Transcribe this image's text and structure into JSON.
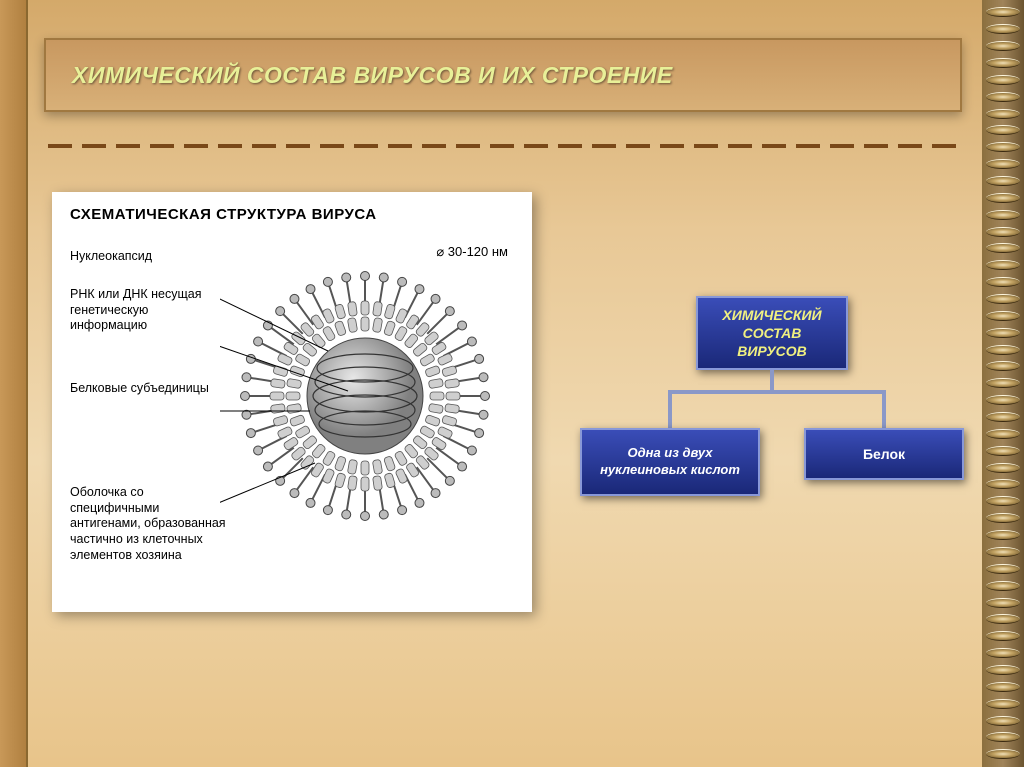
{
  "title": "ХИМИЧЕСКИЙ СОСТАВ ВИРУСОВ И ИХ СТРОЕНИЕ",
  "virus_diagram": {
    "heading": "СХЕМАТИЧЕСКАЯ СТРУКТУРА ВИРУСА",
    "diameter": "⌀ 30-120 нм",
    "labels": {
      "nucleocapsid": "Нуклеокапсид",
      "rna_dna": "РНК или ДНК несущая генетическую информацию",
      "subunits": "Белковые субъединицы",
      "envelope": "Оболочка со специфичными антигенами, образованная частично из клеточных элементов хозяина"
    },
    "colors": {
      "panel_bg": "#ffffff",
      "text": "#000000",
      "line": "#000000"
    }
  },
  "flowchart": {
    "root": "ХИМИЧЕСКИЙ СОСТАВ ВИРУСОВ",
    "child1": "Одна из двух нуклеиновых кислот",
    "child2": "Белок",
    "box_fill_top": "#3a4db8",
    "box_fill_bottom": "#1a2878",
    "box_border": "#8898d8",
    "root_text_color": "#f0f080",
    "child_text_color": "#ffffff",
    "connector_color": "#8a98c8"
  },
  "styling": {
    "bg_gradient": [
      "#d4a96a",
      "#e8c896",
      "#f0d9b0",
      "#e8c48a"
    ],
    "title_text_color": "#e8f098",
    "dash_color": "#7a4818",
    "spiral_colors": [
      "#8b6f3e",
      "#a0845a",
      "#6b5430"
    ]
  }
}
